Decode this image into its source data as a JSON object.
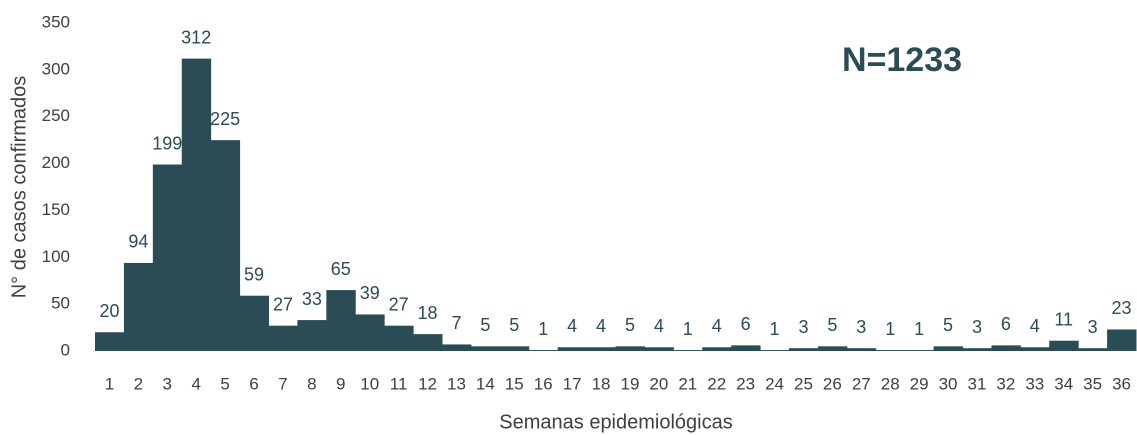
{
  "chart_data": {
    "type": "bar",
    "annotation": "N=1233",
    "x_label": "Semanas epidemiológicas",
    "y_label": "N° de casos confirmados",
    "categories": [
      "1",
      "2",
      "3",
      "4",
      "5",
      "6",
      "7",
      "8",
      "9",
      "10",
      "11",
      "12",
      "13",
      "14",
      "15",
      "16",
      "17",
      "18",
      "19",
      "20",
      "21",
      "22",
      "23",
      "24",
      "25",
      "26",
      "27",
      "28",
      "29",
      "30",
      "31",
      "32",
      "33",
      "34",
      "35",
      "36"
    ],
    "values": [
      20,
      94,
      199,
      312,
      225,
      59,
      27,
      33,
      65,
      39,
      27,
      18,
      7,
      5,
      5,
      1,
      4,
      4,
      5,
      4,
      1,
      4,
      6,
      1,
      3,
      5,
      3,
      1,
      1,
      5,
      3,
      6,
      4,
      11,
      3,
      23
    ],
    "color": "#2b4c55",
    "ylim": [
      0,
      350
    ],
    "yticks": [
      0,
      50,
      100,
      150,
      200,
      250,
      300,
      350
    ],
    "grid": false
  }
}
